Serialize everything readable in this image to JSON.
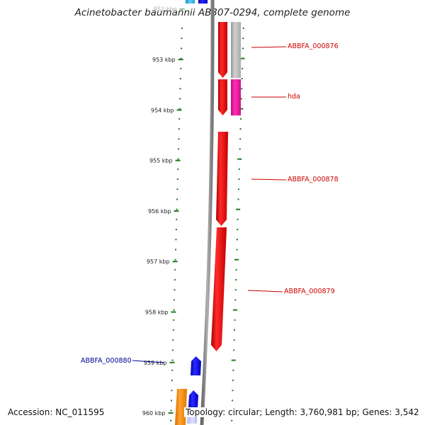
{
  "title": "Acinetobacter baumannii AB307-0294, complete genome",
  "footer": {
    "accession": "Accession: NC_011595",
    "topology": "Topology: circular; Length: 3,760,981 bp; Genes: 3,542"
  },
  "scale_labels": [
    {
      "kb": 952,
      "text": "952 kbp",
      "faded": true
    },
    {
      "kb": 953,
      "text": "953 kbp"
    },
    {
      "kb": 954,
      "text": "954 kbp"
    },
    {
      "kb": 955,
      "text": "955 kbp"
    },
    {
      "kb": 956,
      "text": "956 kbp"
    },
    {
      "kb": 957,
      "text": "957 kbp"
    },
    {
      "kb": 958,
      "text": "958 kbp"
    },
    {
      "kb": 959,
      "text": "959 kbp"
    },
    {
      "kb": 960,
      "text": "960 kbp"
    }
  ],
  "gene_labels": [
    {
      "text": "ABBFA_000876",
      "color": "#cc0000",
      "side": "right"
    },
    {
      "text": "hda",
      "color": "#cc0000",
      "side": "right"
    },
    {
      "text": "ABBFA_000878",
      "color": "#cc0000",
      "side": "right"
    },
    {
      "text": "ABBFA_000879",
      "color": "#cc0000",
      "side": "right"
    },
    {
      "text": "ABBFA_000880",
      "color": "#000099",
      "side": "left"
    }
  ],
  "colors": {
    "backbone": "#888888",
    "ticks": "#1f7a1f",
    "cds_forward": "#ff0000",
    "cds_reverse": "#0000ee",
    "gray_feature": "#b3b3b3",
    "magenta_feature": "#e8179a",
    "orange_feature": "#ff8c00",
    "light_blue_feature": "#c8c8ff",
    "cyan_feature": "#33b5e5"
  }
}
